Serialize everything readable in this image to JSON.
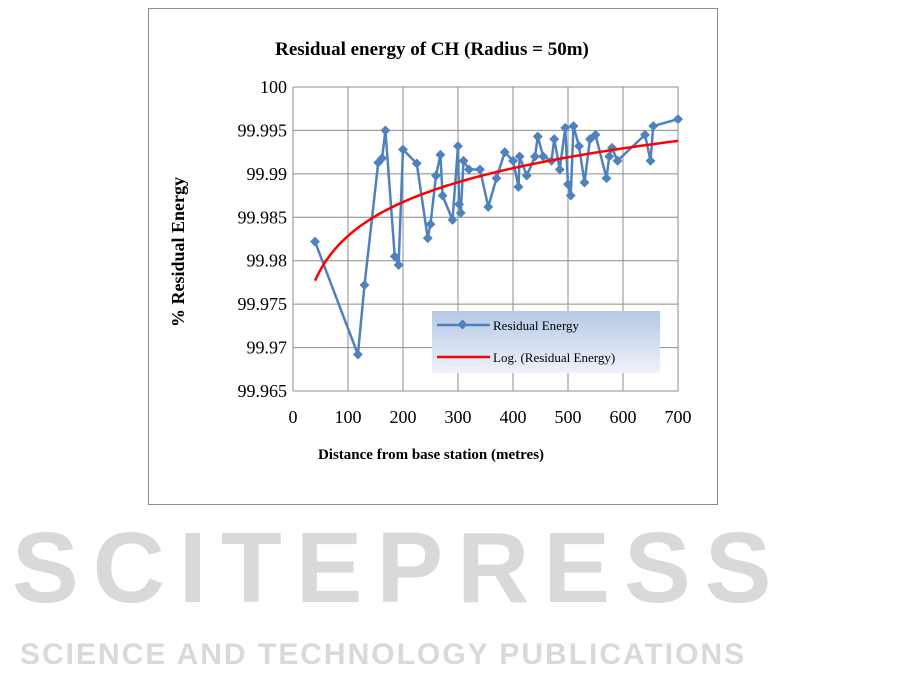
{
  "chart_data": {
    "type": "line",
    "title": "Residual energy of CH (Radius = 50m)",
    "xlabel": "Distance from base station (metres)",
    "ylabel": "% Residual Energy",
    "xlim": [
      0,
      700
    ],
    "ylim": [
      99.965,
      100
    ],
    "xticks": [
      0,
      100,
      200,
      300,
      400,
      500,
      600,
      700
    ],
    "yticks": [
      "99.965",
      "99.97",
      "99.975",
      "99.98",
      "99.985",
      "99.99",
      "99.995",
      "100"
    ],
    "grid": true,
    "legend_position": "bottom-right",
    "series": [
      {
        "name": "Residual Energy",
        "color": "#4f81bd",
        "marker": "diamond",
        "points": [
          [
            40,
            99.9822
          ],
          [
            118,
            99.9692
          ],
          [
            130,
            99.9772
          ],
          [
            155,
            99.9913
          ],
          [
            162,
            99.9918
          ],
          [
            168,
            99.995
          ],
          [
            185,
            99.9805
          ],
          [
            192,
            99.9795
          ],
          [
            200,
            99.9928
          ],
          [
            225,
            99.9912
          ],
          [
            245,
            99.9826
          ],
          [
            250,
            99.9842
          ],
          [
            260,
            99.9898
          ],
          [
            268,
            99.9922
          ],
          [
            272,
            99.9875
          ],
          [
            290,
            99.9847
          ],
          [
            300,
            99.9932
          ],
          [
            302,
            99.9865
          ],
          [
            305,
            99.9855
          ],
          [
            310,
            99.9915
          ],
          [
            320,
            99.9905
          ],
          [
            340,
            99.9905
          ],
          [
            355,
            99.9862
          ],
          [
            370,
            99.9895
          ],
          [
            385,
            99.9925
          ],
          [
            400,
            99.9915
          ],
          [
            410,
            99.9885
          ],
          [
            412,
            99.992
          ],
          [
            425,
            99.9898
          ],
          [
            440,
            99.992
          ],
          [
            445,
            99.9943
          ],
          [
            455,
            99.992
          ],
          [
            470,
            99.9915
          ],
          [
            475,
            99.994
          ],
          [
            485,
            99.9905
          ],
          [
            495,
            99.9953
          ],
          [
            500,
            99.9888
          ],
          [
            505,
            99.9875
          ],
          [
            510,
            99.9955
          ],
          [
            520,
            99.9932
          ],
          [
            530,
            99.989
          ],
          [
            540,
            99.994
          ],
          [
            550,
            99.9945
          ],
          [
            570,
            99.9895
          ],
          [
            575,
            99.992
          ],
          [
            580,
            99.993
          ],
          [
            590,
            99.9915
          ],
          [
            640,
            99.9945
          ],
          [
            650,
            99.9915
          ],
          [
            655,
            99.9955
          ],
          [
            700,
            99.9963
          ]
        ]
      },
      {
        "name": "Log. (Residual Energy)",
        "color": "#ff0000",
        "type": "log-trendline",
        "a": 99.95695,
        "b": 0.005625,
        "x_range": [
          40,
          700
        ]
      }
    ]
  },
  "watermark": {
    "main": "SCITEPRESS",
    "sub": "SCIENCE AND TECHNOLOGY PUBLICATIONS"
  }
}
